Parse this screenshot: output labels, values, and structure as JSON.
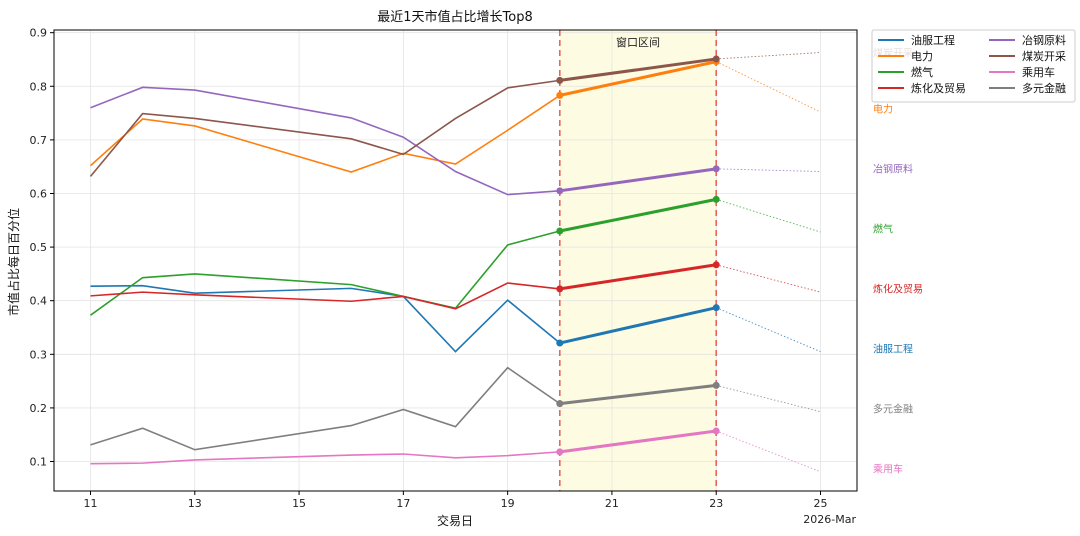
{
  "chart_data": {
    "type": "line",
    "title": "最近1天市值占比增长Top8",
    "xlabel": "交易日",
    "ylabel": "市值占比每日百分位",
    "x_offset_label": "2026-Mar",
    "window_label": "窗口区间",
    "xlim": [
      10.3,
      25.7
    ],
    "ylim": [
      0.045,
      0.905
    ],
    "x_ticks": [
      11,
      13,
      15,
      17,
      19,
      21,
      23,
      25
    ],
    "y_ticks": [
      0.1,
      0.2,
      0.3,
      0.4,
      0.5,
      0.6,
      0.7,
      0.8,
      0.9
    ],
    "x_tick_labels": [
      "11",
      "13",
      "15",
      "17",
      "19",
      "21",
      "23",
      "25"
    ],
    "y_tick_labels": [
      "0.1",
      "0.2",
      "0.3",
      "0.4",
      "0.5",
      "0.6",
      "0.7",
      "0.8",
      "0.9"
    ],
    "window": [
      20,
      23
    ],
    "grid": true,
    "legend_position": "outside-top-right",
    "x": [
      11,
      12,
      13,
      16,
      17,
      18,
      19,
      20,
      23
    ],
    "series": [
      {
        "name": "油服工程",
        "color": "#1f77b4",
        "values": [
          0.427,
          0.428,
          0.414,
          0.423,
          0.408,
          0.305,
          0.401,
          0.321,
          0.387
        ],
        "projection": 0.305
      },
      {
        "name": "电力",
        "color": "#ff7f0e",
        "values": [
          0.652,
          0.739,
          0.726,
          0.64,
          0.675,
          0.655,
          0.718,
          0.783,
          0.846
        ],
        "projection": 0.752
      },
      {
        "name": "燃气",
        "color": "#2ca02c",
        "values": [
          0.373,
          0.443,
          0.45,
          0.43,
          0.408,
          0.386,
          0.504,
          0.53,
          0.589
        ],
        "projection": 0.528
      },
      {
        "name": "炼化及贸易",
        "color": "#d62728",
        "values": [
          0.409,
          0.416,
          0.411,
          0.399,
          0.408,
          0.385,
          0.433,
          0.422,
          0.467
        ],
        "projection": 0.416
      },
      {
        "name": "冶钢原料",
        "color": "#9467bd",
        "values": [
          0.76,
          0.798,
          0.793,
          0.741,
          0.705,
          0.641,
          0.598,
          0.605,
          0.646
        ],
        "projection": 0.641
      },
      {
        "name": "煤炭开采",
        "color": "#8c564b",
        "values": [
          0.632,
          0.749,
          0.74,
          0.702,
          0.673,
          0.74,
          0.797,
          0.811,
          0.851
        ],
        "projection": 0.863
      },
      {
        "name": "乘用车",
        "color": "#e377c2",
        "values": [
          0.096,
          0.097,
          0.103,
          0.112,
          0.114,
          0.107,
          0.111,
          0.118,
          0.157
        ],
        "projection": 0.081
      },
      {
        "name": "多元金融",
        "color": "#7f7f7f",
        "values": [
          0.131,
          0.162,
          0.122,
          0.167,
          0.197,
          0.165,
          0.275,
          0.208,
          0.242
        ],
        "projection": 0.193
      }
    ],
    "end_labels": [
      {
        "text": "煤炭开采",
        "color": "#8c564b",
        "y": 0.861
      },
      {
        "text": "电力",
        "color": "#ff7f0e",
        "y": 0.757
      },
      {
        "text": "冶钢原料",
        "color": "#9467bd",
        "y": 0.645
      },
      {
        "text": "燃气",
        "color": "#2ca02c",
        "y": 0.533
      },
      {
        "text": "炼化及贸易",
        "color": "#d62728",
        "y": 0.421
      },
      {
        "text": "油服工程",
        "color": "#1f77b4",
        "y": 0.309
      },
      {
        "text": "多元金融",
        "color": "#7f7f7f",
        "y": 0.197
      },
      {
        "text": "乘用车",
        "color": "#e377c2",
        "y": 0.085
      }
    ]
  }
}
